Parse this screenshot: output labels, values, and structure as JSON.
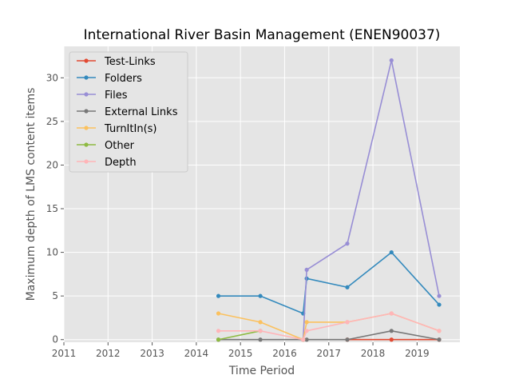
{
  "chart_data": {
    "type": "line",
    "title": "International River Basin Management (ENEN90037)",
    "xlabel": "Time Period",
    "ylabel": "Maximum depth of LMS content items",
    "xlim": [
      2011.0,
      2019.97
    ],
    "ylim": [
      -0.3,
      33.6
    ],
    "x_ticks": [
      "2011",
      "2012",
      "2013",
      "2014",
      "2015",
      "2016",
      "2017",
      "2018",
      "2019"
    ],
    "y_ticks": [
      0,
      5,
      10,
      15,
      20,
      25,
      30
    ],
    "grid": true,
    "legend_position": "upper-left",
    "x": [
      2014.5,
      2015.45,
      2016.42,
      2016.5,
      2017.42,
      2018.42,
      2019.5
    ],
    "series": [
      {
        "name": "Test-Links",
        "color": "#E24A33",
        "values": [
          null,
          null,
          null,
          null,
          0,
          0,
          0
        ]
      },
      {
        "name": "Folders",
        "color": "#348ABD",
        "values": [
          5,
          5,
          3,
          7,
          6,
          10,
          4
        ]
      },
      {
        "name": "Files",
        "color": "#988ED5",
        "values": [
          null,
          null,
          0,
          8,
          11,
          32,
          5
        ]
      },
      {
        "name": "External Links",
        "color": "#777777",
        "values": [
          0,
          0,
          0,
          0,
          0,
          1,
          0
        ]
      },
      {
        "name": "TurnItIn(s)",
        "color": "#FBC15E",
        "values": [
          3,
          2,
          0,
          2,
          2,
          3,
          1
        ]
      },
      {
        "name": "Other",
        "color": "#8EBA42",
        "values": [
          0,
          1,
          null,
          null,
          null,
          null,
          null
        ]
      },
      {
        "name": "Depth",
        "color": "#FFB5B8",
        "values": [
          1,
          1,
          0,
          1,
          2,
          3,
          1
        ]
      }
    ]
  }
}
